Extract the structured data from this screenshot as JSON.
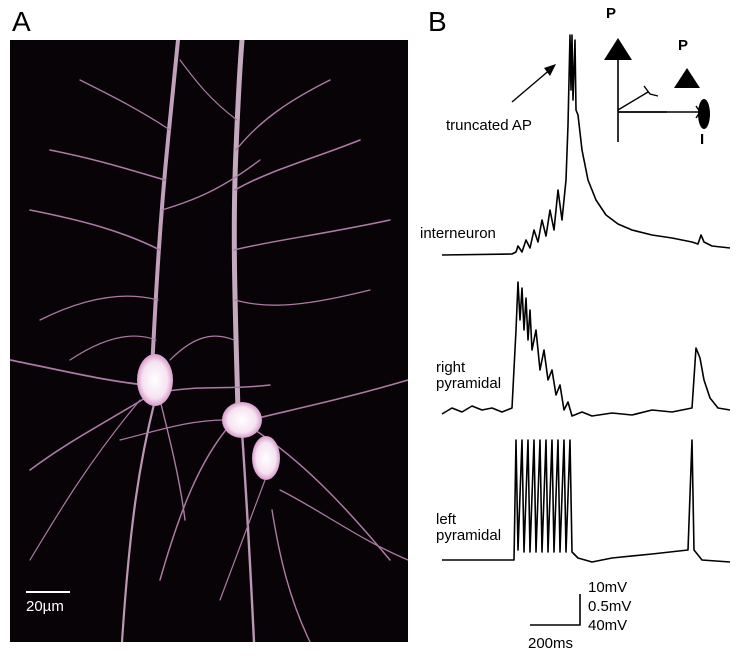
{
  "panel_a": {
    "label": "A",
    "scale_bar": "20µm"
  },
  "panel_b": {
    "label": "B",
    "annotation": "truncated AP",
    "traces": [
      {
        "label": "interneuron"
      },
      {
        "label": "right\npyramidal"
      },
      {
        "label": "left\npyramidal"
      }
    ],
    "schematic": {
      "cell_p1": "P",
      "cell_p2": "P",
      "cell_i": "I"
    },
    "scale_labels": {
      "v1": "10mV",
      "v2": "0.5mV",
      "v3": "40mV",
      "time": "200ms"
    }
  },
  "colors": {
    "neuron": "#d8a6d0",
    "soma": "#fff4fb",
    "background": "#070306"
  }
}
